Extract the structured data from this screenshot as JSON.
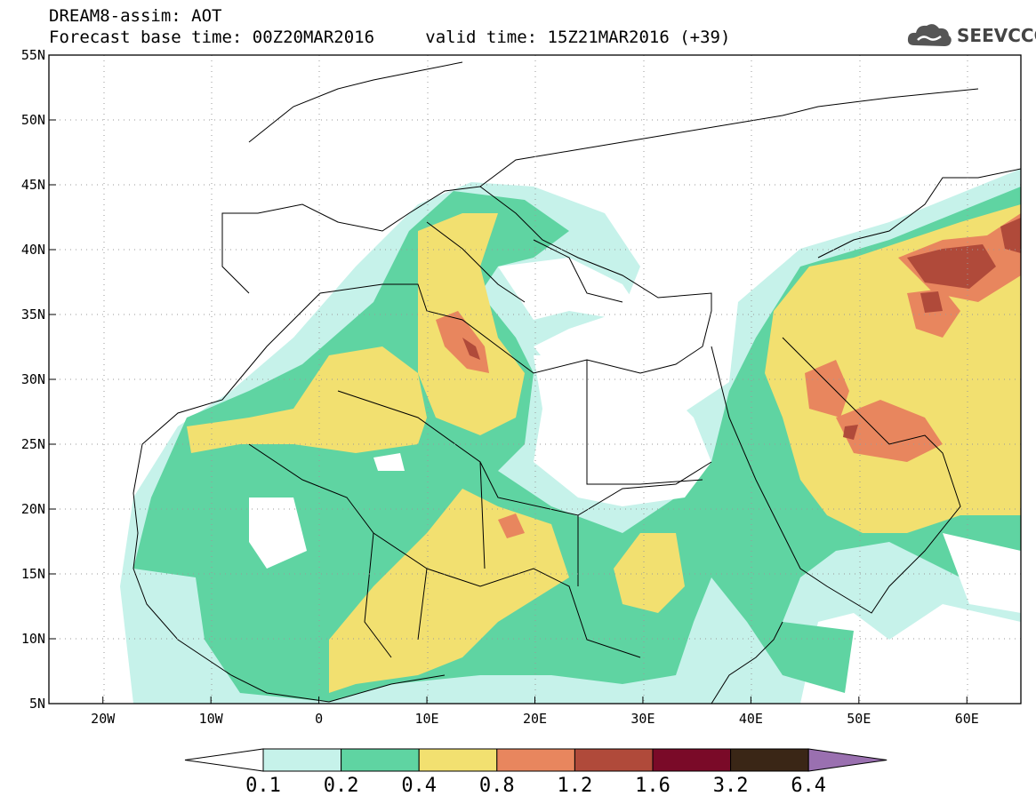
{
  "header": {
    "line1": "DREAM8-assim: AOT",
    "line2_base": "Forecast base time: 00Z20MAR2016",
    "line2_valid": "valid time: 15Z21MAR2016 (+39)"
  },
  "brand": {
    "name": "SEEVCCC",
    "icon": "cloud-logo-icon"
  },
  "map_data": {
    "type": "filled-contour-map",
    "variable": "AOT",
    "lon_range": [
      -25,
      65
    ],
    "lat_range": [
      5,
      55
    ],
    "lat_ticks": [
      "55N",
      "50N",
      "45N",
      "40N",
      "35N",
      "30N",
      "25N",
      "20N",
      "15N",
      "10N",
      "5N"
    ],
    "lon_ticks": [
      "20W",
      "10W",
      "0",
      "10E",
      "20E",
      "30E",
      "40E",
      "50E",
      "60E"
    ],
    "grid": "dotted"
  },
  "colorbar": {
    "labels": [
      "0.1",
      "0.2",
      "0.4",
      "0.8",
      "1.2",
      "1.6",
      "3.2",
      "6.4"
    ],
    "colors": [
      "#ffffff",
      "#c6f2ea",
      "#5fd4a2",
      "#f2e070",
      "#e8865e",
      "#b04a3a",
      "#7a0a28",
      "#3a2616",
      "#9a70b0"
    ]
  }
}
